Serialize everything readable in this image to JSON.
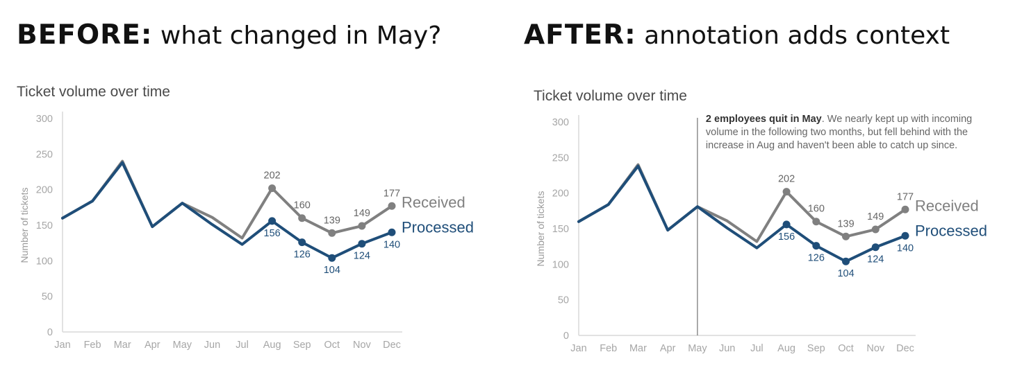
{
  "headings": [
    {
      "key": "BEFORE:",
      "rest": " what changed in May?"
    },
    {
      "key": "AFTER:",
      "rest": " annotation adds context"
    }
  ],
  "chart_data": [
    {
      "type": "line",
      "title": "Ticket volume over time",
      "xlabel": "",
      "ylabel": "Number of tickets",
      "categories": [
        "Jan",
        "Feb",
        "Mar",
        "Apr",
        "May",
        "Jun",
        "Jul",
        "Aug",
        "Sep",
        "Oct",
        "Nov",
        "Dec"
      ],
      "ylim": [
        0,
        300
      ],
      "yticks": [
        0,
        50,
        100,
        150,
        200,
        250,
        300
      ],
      "series": [
        {
          "name": "Received",
          "color": "#808080",
          "values": [
            160,
            184,
            240,
            148,
            181,
            161,
            132,
            202,
            160,
            139,
            149,
            177
          ],
          "labeled_from": 7
        },
        {
          "name": "Processed",
          "color": "#1f4e79",
          "values": [
            160,
            184,
            238,
            148,
            181,
            151,
            123,
            156,
            126,
            104,
            124,
            140
          ],
          "labeled_from": 7
        }
      ],
      "grid": false,
      "legend": "direct-labels-right"
    },
    {
      "type": "line",
      "title": "Ticket volume over time",
      "xlabel": "",
      "ylabel": "Number of tickets",
      "categories": [
        "Jan",
        "Feb",
        "Mar",
        "Apr",
        "May",
        "Jun",
        "Jul",
        "Aug",
        "Sep",
        "Oct",
        "Nov",
        "Dec"
      ],
      "ylim": [
        0,
        300
      ],
      "yticks": [
        0,
        50,
        100,
        150,
        200,
        250,
        300
      ],
      "series": [
        {
          "name": "Received",
          "color": "#808080",
          "values": [
            160,
            184,
            240,
            148,
            181,
            161,
            132,
            202,
            160,
            139,
            149,
            177
          ],
          "labeled_from": 7
        },
        {
          "name": "Processed",
          "color": "#1f4e79",
          "values": [
            160,
            184,
            238,
            148,
            181,
            151,
            123,
            156,
            126,
            104,
            124,
            140
          ],
          "labeled_from": 7
        }
      ],
      "grid": false,
      "legend": "direct-labels-right",
      "annotation": {
        "at": "May",
        "bold": "2 employees quit in May",
        "lines": [
          ". We nearly kept up with incoming",
          "volume in the following two months, but fell behind with the",
          "increase in Aug and haven't been able to catch up since."
        ]
      }
    }
  ]
}
